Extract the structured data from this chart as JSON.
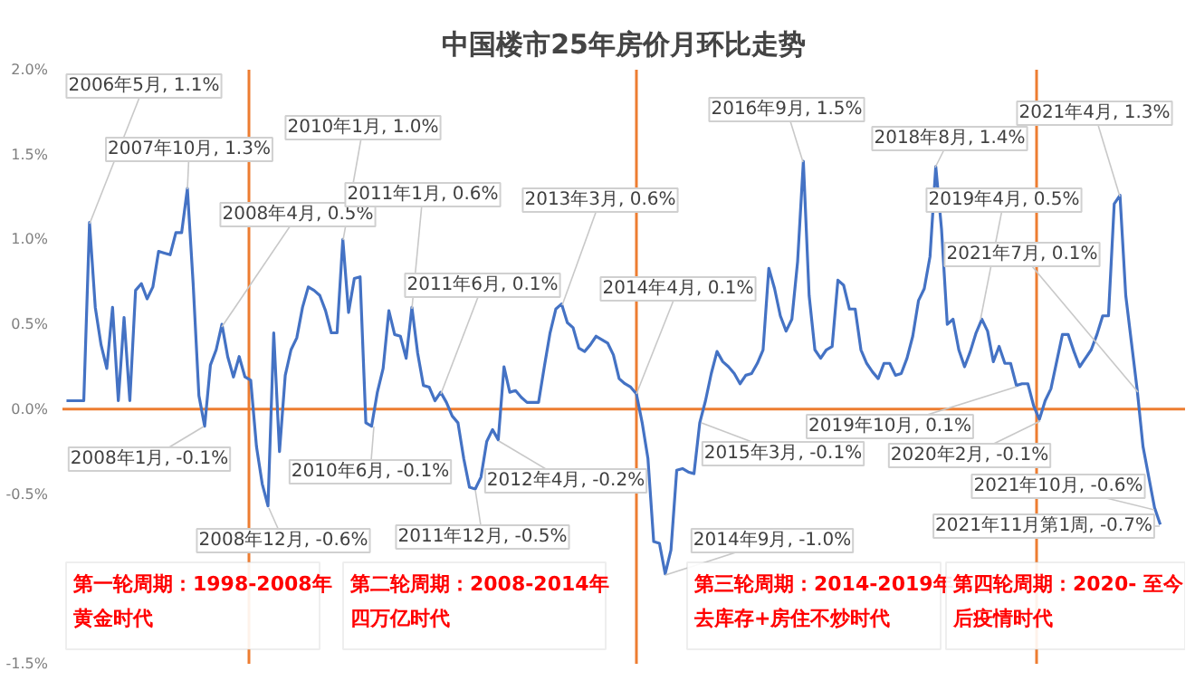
{
  "chart_data": {
    "type": "line",
    "title": "中国楼市25年房价月环比走势",
    "categories": [
      null,
      null,
      null,
      null,
      null,
      null,
      null,
      null,
      null,
      null,
      null,
      null,
      null,
      null,
      null,
      null,
      null,
      null,
      null,
      null,
      null,
      null,
      null,
      null,
      null,
      null,
      null,
      null,
      null,
      null,
      null,
      null,
      null,
      null,
      null,
      null,
      null,
      null,
      null,
      null,
      null,
      null,
      null,
      null,
      null,
      null,
      null,
      null,
      null,
      null,
      null,
      null,
      null,
      null,
      null,
      null,
      null,
      null,
      null,
      null,
      null,
      null,
      null,
      null,
      null,
      null,
      null,
      null,
      null,
      null,
      null,
      null,
      null,
      null,
      null,
      null,
      null,
      null,
      null,
      null,
      null,
      null,
      null,
      null,
      null,
      null,
      null,
      null,
      null,
      null,
      null,
      null,
      null,
      null,
      null,
      null,
      null,
      null,
      null,
      null,
      null,
      null,
      null,
      null,
      null,
      null,
      null,
      null,
      null,
      null,
      null,
      null,
      null,
      null,
      null,
      null,
      null,
      null,
      null,
      null,
      null,
      null,
      null,
      null,
      null,
      null,
      null,
      null,
      null,
      null,
      null,
      null,
      null,
      null,
      null,
      null,
      null,
      null,
      null,
      null,
      null,
      null,
      null,
      null,
      null,
      null,
      null,
      null,
      null,
      null,
      null,
      null,
      null,
      null,
      null,
      null,
      null,
      null,
      null,
      null,
      null,
      null,
      null,
      null,
      null,
      null,
      null,
      null,
      null,
      null,
      null,
      null,
      null,
      null,
      null,
      null,
      null,
      null,
      null,
      null,
      null,
      null,
      null,
      null,
      null,
      null,
      null,
      null,
      null,
      null,
      null
    ],
    "series": [
      {
        "color": "#4472c4",
        "values": [
          0.05,
          0.05,
          0.05,
          0.05,
          1.1,
          0.6,
          0.38,
          0.24,
          0.6,
          0.05,
          0.54,
          0.05,
          0.7,
          0.74,
          0.65,
          0.72,
          0.93,
          0.92,
          0.91,
          1.04,
          1.04,
          1.3,
          0.74,
          0.08,
          -0.1,
          0.26,
          0.35,
          0.5,
          0.31,
          0.19,
          0.31,
          0.19,
          0.17,
          -0.22,
          -0.44,
          -0.57,
          0.45,
          -0.25,
          0.2,
          0.35,
          0.42,
          0.6,
          0.72,
          0.7,
          0.67,
          0.58,
          0.45,
          0.45,
          1.0,
          0.57,
          0.77,
          0.78,
          -0.08,
          -0.1,
          0.1,
          0.24,
          0.58,
          0.44,
          0.43,
          0.3,
          0.6,
          0.33,
          0.14,
          0.13,
          0.05,
          0.1,
          0.04,
          -0.04,
          -0.08,
          -0.29,
          -0.46,
          -0.47,
          -0.4,
          -0.19,
          -0.12,
          -0.18,
          0.25,
          0.1,
          0.11,
          0.07,
          0.04,
          0.04,
          0.04,
          0.25,
          0.45,
          0.59,
          0.62,
          0.51,
          0.48,
          0.36,
          0.34,
          0.38,
          0.43,
          0.41,
          0.39,
          0.32,
          0.18,
          0.15,
          0.13,
          0.09,
          -0.08,
          -0.29,
          -0.78,
          -0.79,
          -0.97,
          -0.83,
          -0.36,
          -0.35,
          -0.37,
          -0.38,
          -0.08,
          0.05,
          0.21,
          0.34,
          0.28,
          0.25,
          0.21,
          0.15,
          0.2,
          0.21,
          0.27,
          0.35,
          0.83,
          0.71,
          0.55,
          0.46,
          0.53,
          0.87,
          1.46,
          0.67,
          0.35,
          0.3,
          0.35,
          0.37,
          0.76,
          0.73,
          0.59,
          0.59,
          0.35,
          0.27,
          0.22,
          0.18,
          0.27,
          0.27,
          0.2,
          0.21,
          0.3,
          0.43,
          0.64,
          0.71,
          0.9,
          1.43,
          1.06,
          0.5,
          0.53,
          0.35,
          0.25,
          0.34,
          0.45,
          0.53,
          0.46,
          0.28,
          0.37,
          0.27,
          0.27,
          0.14,
          0.15,
          0.15,
          0.02,
          -0.06,
          0.05,
          0.12,
          0.28,
          0.44,
          0.44,
          0.34,
          0.25,
          0.3,
          0.35,
          0.44,
          0.55,
          0.55,
          1.21,
          1.26,
          0.67,
          0.39,
          0.11,
          -0.22,
          -0.4,
          -0.58,
          -0.68
        ]
      }
    ],
    "ylim": [
      -1.5,
      2.0
    ],
    "yticks": [
      {
        "value": -1.5,
        "label": "-1.5%"
      },
      {
        "value": -0.5,
        "label": "-0.5%"
      },
      {
        "value": 0.0,
        "label": "0.0%"
      },
      {
        "value": 0.5,
        "label": "0.5%"
      },
      {
        "value": 1.0,
        "label": "1.0%"
      },
      {
        "value": 1.5,
        "label": "1.5%"
      },
      {
        "value": 2.0,
        "label": "2.0%"
      }
    ],
    "tick_labels": "y",
    "ref_lines": [
      {
        "axis": "y",
        "value": 0,
        "color": "#ed7d31"
      }
    ],
    "annotations": [
      "2006年5月, 1.1%",
      "2007年10月, 1.3%",
      "2008年4月, 0.5%",
      "2008年1月, -0.1%",
      "2008年12月, -0.6%",
      "2010年1月, 1.0%",
      "2011年1月, 0.6%",
      "2011年6月, 0.1%",
      "2010年6月, -0.1%",
      "2011年12月, -0.5%",
      "2012年4月, -0.2%",
      "2013年3月, 0.6%",
      "2014年4月, 0.1%",
      "2014年9月, -1.0%",
      "2015年3月, -0.1%",
      "2016年9月, 1.5%",
      "2018年8月, 1.4%",
      "2019年4月, 0.5%",
      "2019年10月, 0.1%",
      "2020年2月, -0.1%",
      "2021年4月, 1.3%",
      "2021年7月, 0.1%",
      "2021年10月, -0.6%",
      "2021年11月第1周, -0.7%",
      "第一轮周期：1998-2008年",
      "黄金时代",
      "第二轮周期：2008-2014年",
      "四万亿时代",
      "第三轮周期：2014-2019年",
      "去库存+房住不炒时代",
      "第四轮周期：2020- 至今",
      "后疫情时代"
    ]
  }
}
